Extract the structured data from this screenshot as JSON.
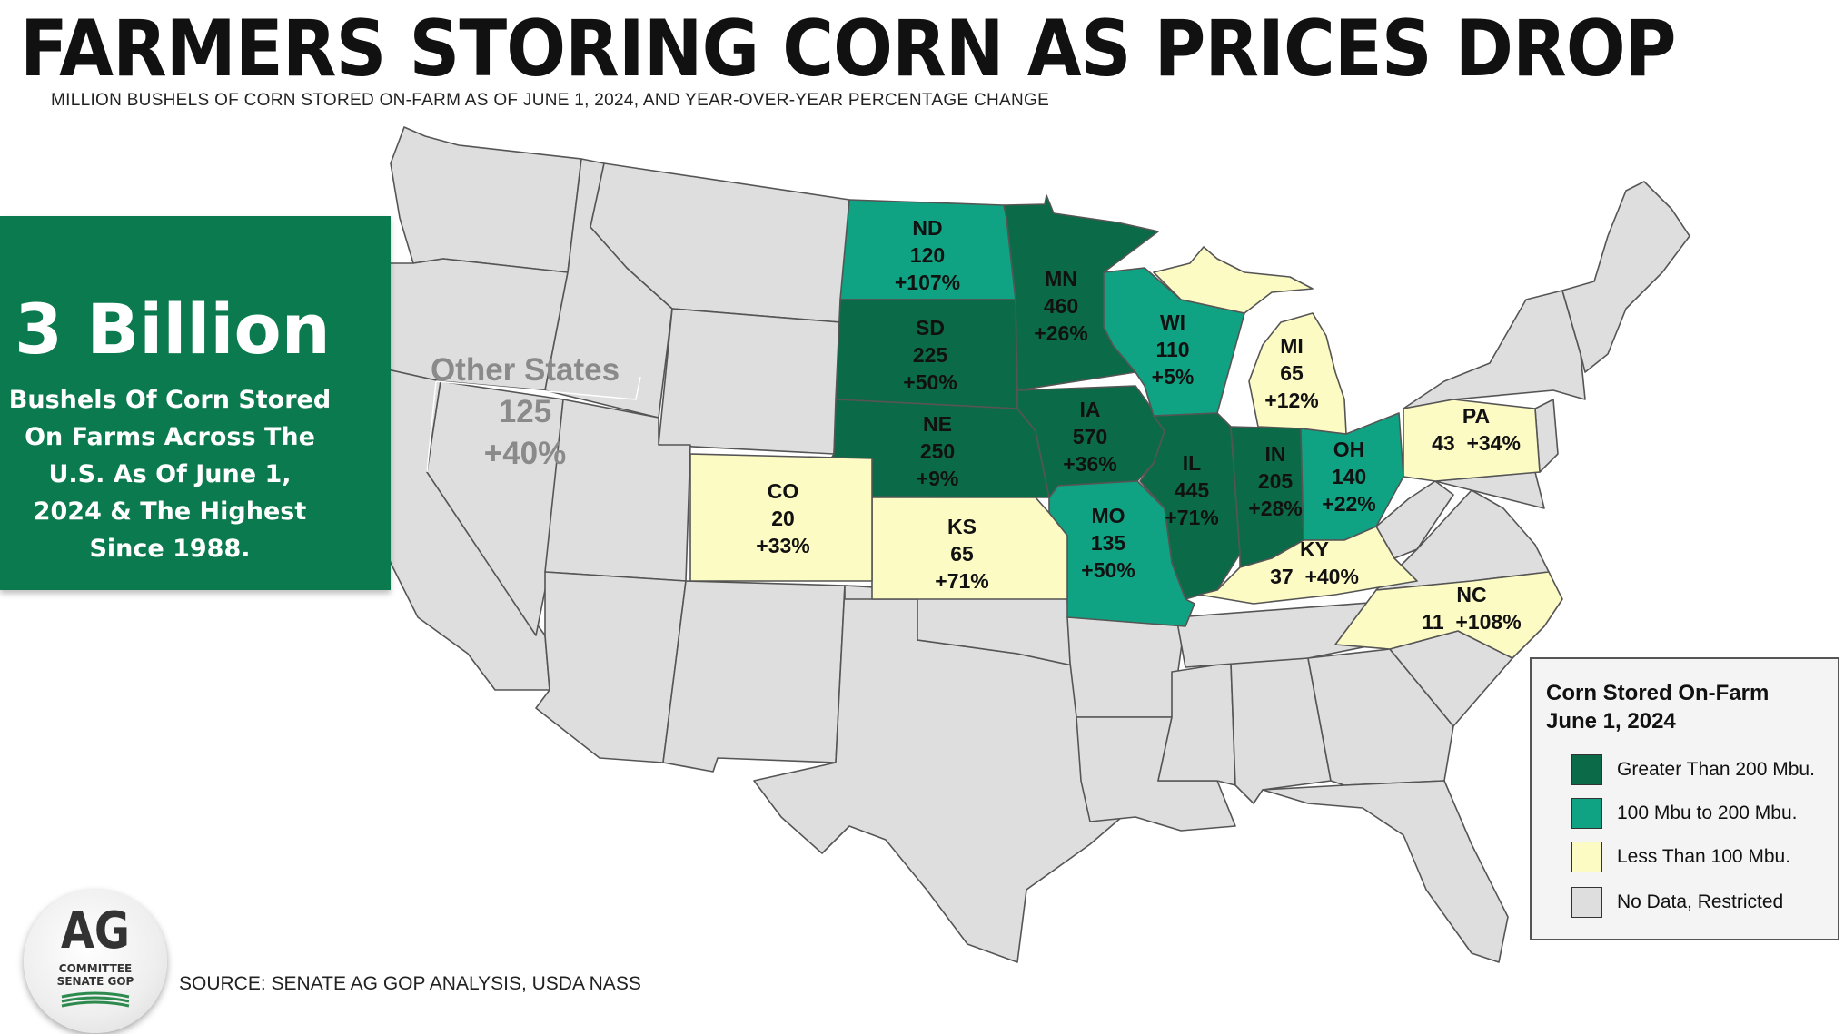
{
  "title": "FARMERS STORING CORN AS PRICES DROP",
  "subtitle": "MILLION BUSHELS OF CORN STORED ON-FARM AS OF JUNE 1, 2024, AND YEAR-OVER-YEAR PERCENTAGE CHANGE",
  "callout": {
    "big_number": "3 Billion",
    "lines": [
      "Bushels Of Corn Stored",
      "On Farms Across The",
      "U.S. As Of June 1,",
      "2024 & The Highest",
      "Since 1988."
    ]
  },
  "other_states": {
    "label": "Other States",
    "value": "125",
    "change": "+40%"
  },
  "states": [
    {
      "abbr": "ND",
      "value": "120",
      "change": "+107%",
      "category": "mid"
    },
    {
      "abbr": "SD",
      "value": "225",
      "change": "+50%",
      "category": "high"
    },
    {
      "abbr": "NE",
      "value": "250",
      "change": "+9%",
      "category": "high"
    },
    {
      "abbr": "MN",
      "value": "460",
      "change": "+26%",
      "category": "high"
    },
    {
      "abbr": "IA",
      "value": "570",
      "change": "+36%",
      "category": "high"
    },
    {
      "abbr": "IL",
      "value": "445",
      "change": "+71%",
      "category": "high"
    },
    {
      "abbr": "IN",
      "value": "205",
      "change": "+28%",
      "category": "high"
    },
    {
      "abbr": "WI",
      "value": "110",
      "change": "+5%",
      "category": "mid"
    },
    {
      "abbr": "MO",
      "value": "135",
      "change": "+50%",
      "category": "mid"
    },
    {
      "abbr": "OH",
      "value": "140",
      "change": "+22%",
      "category": "mid"
    },
    {
      "abbr": "MI",
      "value": "65",
      "change": "+12%",
      "category": "low"
    },
    {
      "abbr": "CO",
      "value": "20",
      "change": "+33%",
      "category": "low"
    },
    {
      "abbr": "KS",
      "value": "65",
      "change": "+71%",
      "category": "low"
    },
    {
      "abbr": "KY",
      "value": "37",
      "change": "+40%",
      "category": "low"
    },
    {
      "abbr": "PA",
      "value": "43",
      "change": "+34%",
      "category": "low"
    },
    {
      "abbr": "NC",
      "value": "11",
      "change": "+108%",
      "category": "low"
    }
  ],
  "legend": {
    "title_lines": [
      "Corn Stored On-Farm",
      "June 1, 2024"
    ],
    "items": [
      {
        "label": "Greater Than 200 Mbu.",
        "color": "#0b6b48"
      },
      {
        "label": "100 Mbu to 200 Mbu.",
        "color": "#10a383"
      },
      {
        "label": "Less Than 100 Mbu.",
        "color": "#fdfbc4"
      },
      {
        "label": "No Data, Restricted",
        "color": "#dedede"
      }
    ]
  },
  "colors": {
    "high": "#0b6b48",
    "mid": "#10a383",
    "low": "#fdfbc4",
    "none": "#dedede",
    "callout": "#0b7a4e"
  },
  "logo": {
    "main": "AG",
    "lines": [
      "COMMITTEE",
      "SENATE GOP"
    ]
  },
  "source": "SOURCE: SENATE AG GOP ANALYSIS, USDA NASS"
}
